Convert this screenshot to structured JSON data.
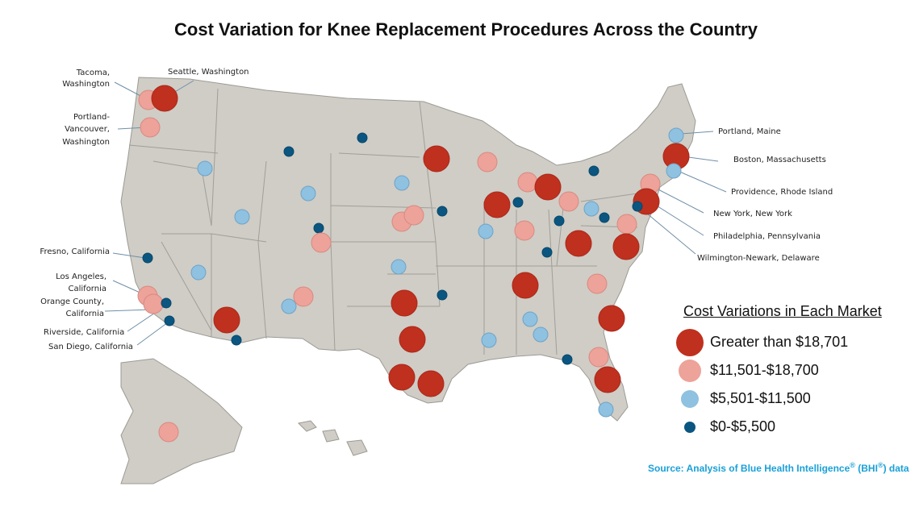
{
  "title": "Cost Variation for Knee Replacement Procedures Across the Country",
  "colors": {
    "greater_18701": "#c0301e",
    "range_11501_18700": "#eda29a",
    "range_5501_11500": "#8fc1e0",
    "range_0_5500": "#0b5680"
  },
  "labeled_markets": {
    "tacoma": {
      "label1": "Tacoma,",
      "label2": "Washington",
      "category": "greater_than_18701_or_11501_18700",
      "cat": "11501-18700"
    },
    "seattle": {
      "label": "Seattle, Washington",
      "cat": ">18701"
    },
    "portland_vancouver": {
      "label1": "Portland-",
      "label2": "Vancouver,",
      "label3": "Washington",
      "cat": "11501-18700"
    },
    "fresno": {
      "label": "Fresno, California",
      "cat": "0-5500"
    },
    "los_angeles": {
      "label1": "Los Angeles,",
      "label2": "California",
      "cat": "11501-18700"
    },
    "orange_county": {
      "label1": "Orange County,",
      "label2": "California",
      "cat": "11501-18700"
    },
    "riverside": {
      "label": "Riverside, California",
      "cat": "0-5500"
    },
    "san_diego": {
      "label": "San Diego, California",
      "cat": "0-5500"
    },
    "portland_maine": {
      "label": "Portland, Maine",
      "cat": "5501-11500"
    },
    "boston": {
      "label": "Boston, Massachusetts",
      "cat": ">18701"
    },
    "providence": {
      "label": "Providence, Rhode Island",
      "cat": "5501-11500"
    },
    "new_york": {
      "label": "New York, New York",
      "cat": "11501-18700"
    },
    "philadelphia": {
      "label": "Philadelphia, Pennsylvania",
      "cat": ">18701"
    },
    "wilmington": {
      "label": "Wilmington-Newark, Delaware",
      "cat": "0-5500"
    }
  },
  "legend": {
    "title": "Cost Variations in Each Market",
    "items": [
      "Greater than $18,701",
      "$11,501-$18,700",
      "$5,501-$11,500",
      "$0-$5,500"
    ]
  },
  "source": {
    "prefix": "Source: Analysis of Blue Health Intelligence",
    "reg": "®",
    "mid": " (BHI",
    "suffix": ") data"
  }
}
